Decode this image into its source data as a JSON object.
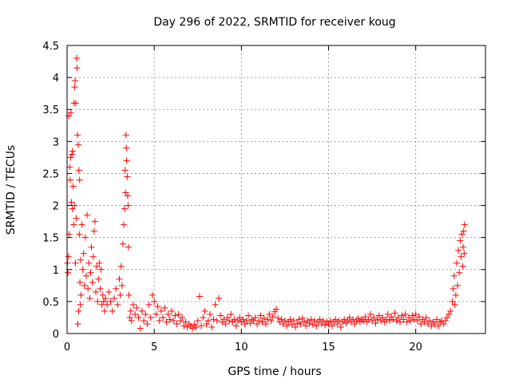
{
  "chart_data": {
    "type": "scatter",
    "title": "Day 296 of 2022, SRMTID for receiver koug",
    "xlabel": "GPS time / hours",
    "ylabel": "SRMTID / TECUs",
    "xlim": [
      0,
      24
    ],
    "ylim": [
      0,
      4.5
    ],
    "x_ticks": [
      0,
      5,
      10,
      15,
      20
    ],
    "x_tick_labels": [
      "0",
      "5",
      "10",
      "15",
      "20"
    ],
    "y_ticks": [
      0,
      0.5,
      1,
      1.5,
      2,
      2.5,
      3,
      3.5,
      4,
      4.5
    ],
    "y_tick_labels": [
      "0",
      "0.5",
      "1",
      "1.5",
      "2",
      "2.5",
      "3",
      "3.5",
      "4",
      "4.5"
    ],
    "grid": true,
    "marker": "plus",
    "color": "#ff0000",
    "series": [
      {
        "name": "SRMTID",
        "points": [
          [
            0.02,
            1.1
          ],
          [
            0.05,
            0.95
          ],
          [
            0.08,
            1.2
          ],
          [
            0.1,
            3.4
          ],
          [
            0.12,
            1.55
          ],
          [
            0.15,
            2.6
          ],
          [
            0.18,
            2.4
          ],
          [
            0.2,
            2.75
          ],
          [
            0.22,
            3.45
          ],
          [
            0.25,
            2.05
          ],
          [
            0.28,
            2.8
          ],
          [
            0.3,
            1.95
          ],
          [
            0.32,
            2.85
          ],
          [
            0.35,
            2.3
          ],
          [
            0.38,
            1.7
          ],
          [
            0.4,
            3.6
          ],
          [
            0.42,
            2.0
          ],
          [
            0.44,
            3.85
          ],
          [
            0.46,
            3.95
          ],
          [
            0.48,
            1.1
          ],
          [
            0.5,
            3.6
          ],
          [
            0.52,
            1.8
          ],
          [
            0.55,
            4.3
          ],
          [
            0.57,
            4.15
          ],
          [
            0.6,
            3.1
          ],
          [
            0.62,
            0.15
          ],
          [
            0.64,
            2.95
          ],
          [
            0.66,
            0.35
          ],
          [
            0.68,
            2.55
          ],
          [
            0.7,
            1.55
          ],
          [
            0.72,
            2.4
          ],
          [
            0.74,
            0.8
          ],
          [
            0.76,
            0.45
          ],
          [
            0.78,
            1.15
          ],
          [
            0.8,
            0.6
          ],
          [
            0.85,
            1.7
          ],
          [
            0.9,
            1.0
          ],
          [
            0.95,
            1.25
          ],
          [
            1.0,
            0.75
          ],
          [
            1.05,
            1.5
          ],
          [
            1.1,
            0.9
          ],
          [
            1.15,
            1.85
          ],
          [
            1.2,
            0.7
          ],
          [
            1.25,
            1.1
          ],
          [
            1.3,
            0.55
          ],
          [
            1.35,
            0.95
          ],
          [
            1.4,
            1.35
          ],
          [
            1.45,
            0.8
          ],
          [
            1.5,
            1.2
          ],
          [
            1.55,
            1.6
          ],
          [
            1.6,
            1.75
          ],
          [
            1.65,
            0.65
          ],
          [
            1.7,
            1.05
          ],
          [
            1.75,
            0.5
          ],
          [
            1.8,
            0.85
          ],
          [
            1.85,
            1.1
          ],
          [
            1.9,
            0.7
          ],
          [
            1.95,
            1.0
          ],
          [
            2.0,
            0.45
          ],
          [
            2.05,
            0.6
          ],
          [
            2.1,
            0.5
          ],
          [
            2.15,
            0.35
          ],
          [
            2.2,
            0.55
          ],
          [
            2.3,
            0.45
          ],
          [
            2.4,
            0.65
          ],
          [
            2.5,
            0.5
          ],
          [
            2.6,
            0.35
          ],
          [
            2.7,
            0.55
          ],
          [
            2.8,
            0.7
          ],
          [
            2.9,
            0.45
          ],
          [
            3.0,
            0.85
          ],
          [
            3.05,
            0.6
          ],
          [
            3.1,
            1.05
          ],
          [
            3.15,
            0.75
          ],
          [
            3.2,
            1.4
          ],
          [
            3.25,
            1.7
          ],
          [
            3.3,
            1.95
          ],
          [
            3.33,
            2.55
          ],
          [
            3.36,
            2.2
          ],
          [
            3.38,
            3.1
          ],
          [
            3.4,
            2.9
          ],
          [
            3.42,
            2.7
          ],
          [
            3.45,
            2.45
          ],
          [
            3.48,
            2.15
          ],
          [
            3.5,
            2.0
          ],
          [
            3.52,
            1.35
          ],
          [
            3.55,
            0.6
          ],
          [
            3.6,
            0.25
          ],
          [
            3.65,
            0.35
          ],
          [
            3.7,
            0.2
          ],
          [
            3.8,
            0.45
          ],
          [
            3.9,
            0.3
          ],
          [
            4.0,
            0.4
          ],
          [
            4.1,
            0.25
          ],
          [
            4.2,
            0.08
          ],
          [
            4.3,
            0.35
          ],
          [
            4.4,
            0.2
          ],
          [
            4.5,
            0.3
          ],
          [
            4.6,
            0.15
          ],
          [
            4.7,
            0.45
          ],
          [
            4.8,
            0.25
          ],
          [
            4.9,
            0.6
          ],
          [
            5.0,
            0.5
          ],
          [
            5.1,
            0.3
          ],
          [
            5.2,
            0.42
          ],
          [
            5.3,
            0.2
          ],
          [
            5.4,
            0.35
          ],
          [
            5.5,
            0.25
          ],
          [
            5.6,
            0.4
          ],
          [
            5.7,
            0.18
          ],
          [
            5.8,
            0.3
          ],
          [
            5.9,
            0.22
          ],
          [
            6.0,
            0.35
          ],
          [
            6.1,
            0.2
          ],
          [
            6.2,
            0.28
          ],
          [
            6.3,
            0.15
          ],
          [
            6.4,
            0.3
          ],
          [
            6.5,
            0.2
          ],
          [
            6.6,
            0.25
          ],
          [
            6.7,
            0.12
          ],
          [
            6.8,
            0.18
          ],
          [
            6.9,
            0.1
          ],
          [
            7.0,
            0.15
          ],
          [
            7.1,
            0.12
          ],
          [
            7.2,
            0.08
          ],
          [
            7.3,
            0.14
          ],
          [
            7.4,
            0.1
          ],
          [
            7.5,
            0.2
          ],
          [
            7.6,
            0.58
          ],
          [
            7.7,
            0.12
          ],
          [
            7.8,
            0.25
          ],
          [
            7.9,
            0.35
          ],
          [
            8.0,
            0.15
          ],
          [
            8.1,
            0.2
          ],
          [
            8.2,
            0.3
          ],
          [
            8.3,
            0.1
          ],
          [
            8.4,
            0.22
          ],
          [
            8.5,
            0.45
          ],
          [
            8.6,
            0.2
          ],
          [
            8.7,
            0.55
          ],
          [
            8.8,
            0.28
          ],
          [
            8.9,
            0.18
          ],
          [
            9.0,
            0.22
          ],
          [
            9.1,
            0.15
          ],
          [
            9.2,
            0.25
          ],
          [
            9.3,
            0.2
          ],
          [
            9.4,
            0.3
          ],
          [
            9.5,
            0.18
          ],
          [
            9.6,
            0.22
          ],
          [
            9.7,
            0.12
          ],
          [
            9.8,
            0.2
          ],
          [
            9.9,
            0.25
          ],
          [
            10.0,
            0.18
          ],
          [
            10.1,
            0.22
          ],
          [
            10.2,
            0.15
          ],
          [
            10.3,
            0.2
          ],
          [
            10.4,
            0.28
          ],
          [
            10.5,
            0.16
          ],
          [
            10.6,
            0.22
          ],
          [
            10.7,
            0.2
          ],
          [
            10.8,
            0.25
          ],
          [
            10.9,
            0.15
          ],
          [
            11.0,
            0.2
          ],
          [
            11.1,
            0.28
          ],
          [
            11.2,
            0.18
          ],
          [
            11.3,
            0.24
          ],
          [
            11.4,
            0.15
          ],
          [
            11.5,
            0.22
          ],
          [
            11.6,
            0.3
          ],
          [
            11.7,
            0.2
          ],
          [
            11.8,
            0.26
          ],
          [
            11.9,
            0.34
          ],
          [
            12.0,
            0.38
          ],
          [
            12.1,
            0.24
          ],
          [
            12.2,
            0.18
          ],
          [
            12.3,
            0.22
          ],
          [
            12.4,
            0.15
          ],
          [
            12.5,
            0.2
          ],
          [
            12.6,
            0.12
          ],
          [
            12.7,
            0.18
          ],
          [
            12.8,
            0.22
          ],
          [
            12.9,
            0.14
          ],
          [
            13.0,
            0.2
          ],
          [
            13.1,
            0.1
          ],
          [
            13.2,
            0.16
          ],
          [
            13.3,
            0.22
          ],
          [
            13.4,
            0.15
          ],
          [
            13.5,
            0.24
          ],
          [
            13.6,
            0.18
          ],
          [
            13.7,
            0.12
          ],
          [
            13.8,
            0.2
          ],
          [
            13.9,
            0.16
          ],
          [
            14.0,
            0.22
          ],
          [
            14.1,
            0.14
          ],
          [
            14.2,
            0.2
          ],
          [
            14.3,
            0.12
          ],
          [
            14.4,
            0.18
          ],
          [
            14.5,
            0.22
          ],
          [
            14.6,
            0.15
          ],
          [
            14.7,
            0.2
          ],
          [
            14.8,
            0.13
          ],
          [
            14.9,
            0.18
          ],
          [
            15.0,
            0.15
          ],
          [
            15.1,
            0.2
          ],
          [
            15.2,
            0.12
          ],
          [
            15.3,
            0.18
          ],
          [
            15.4,
            0.22
          ],
          [
            15.5,
            0.15
          ],
          [
            15.6,
            0.2
          ],
          [
            15.7,
            0.1
          ],
          [
            15.8,
            0.18
          ],
          [
            15.9,
            0.22
          ],
          [
            16.0,
            0.16
          ],
          [
            16.1,
            0.2
          ],
          [
            16.2,
            0.25
          ],
          [
            16.3,
            0.18
          ],
          [
            16.4,
            0.22
          ],
          [
            16.5,
            0.15
          ],
          [
            16.6,
            0.2
          ],
          [
            16.7,
            0.24
          ],
          [
            16.8,
            0.18
          ],
          [
            16.9,
            0.22
          ],
          [
            17.0,
            0.2
          ],
          [
            17.1,
            0.26
          ],
          [
            17.2,
            0.18
          ],
          [
            17.3,
            0.22
          ],
          [
            17.4,
            0.3
          ],
          [
            17.5,
            0.2
          ],
          [
            17.6,
            0.25
          ],
          [
            17.7,
            0.16
          ],
          [
            17.8,
            0.22
          ],
          [
            17.9,
            0.28
          ],
          [
            18.0,
            0.2
          ],
          [
            18.1,
            0.25
          ],
          [
            18.2,
            0.18
          ],
          [
            18.3,
            0.22
          ],
          [
            18.4,
            0.3
          ],
          [
            18.5,
            0.2
          ],
          [
            18.6,
            0.26
          ],
          [
            18.7,
            0.22
          ],
          [
            18.8,
            0.32
          ],
          [
            18.9,
            0.2
          ],
          [
            19.0,
            0.25
          ],
          [
            19.1,
            0.18
          ],
          [
            19.2,
            0.28
          ],
          [
            19.3,
            0.22
          ],
          [
            19.4,
            0.3
          ],
          [
            19.5,
            0.18
          ],
          [
            19.6,
            0.25
          ],
          [
            19.7,
            0.2
          ],
          [
            19.8,
            0.28
          ],
          [
            19.9,
            0.22
          ],
          [
            20.0,
            0.3
          ],
          [
            20.1,
            0.2
          ],
          [
            20.2,
            0.26
          ],
          [
            20.3,
            0.15
          ],
          [
            20.4,
            0.22
          ],
          [
            20.5,
            0.18
          ],
          [
            20.6,
            0.25
          ],
          [
            20.7,
            0.15
          ],
          [
            20.8,
            0.2
          ],
          [
            20.9,
            0.12
          ],
          [
            21.0,
            0.18
          ],
          [
            21.1,
            0.15
          ],
          [
            21.2,
            0.22
          ],
          [
            21.3,
            0.12
          ],
          [
            21.4,
            0.18
          ],
          [
            21.5,
            0.2
          ],
          [
            21.6,
            0.15
          ],
          [
            21.7,
            0.2
          ],
          [
            21.8,
            0.25
          ],
          [
            21.9,
            0.3
          ],
          [
            22.0,
            0.35
          ],
          [
            22.1,
            0.5
          ],
          [
            22.15,
            0.7
          ],
          [
            22.2,
            0.9
          ],
          [
            22.25,
            0.45
          ],
          [
            22.3,
            0.6
          ],
          [
            22.35,
            1.1
          ],
          [
            22.4,
            0.75
          ],
          [
            22.45,
            1.3
          ],
          [
            22.5,
            0.95
          ],
          [
            22.55,
            1.45
          ],
          [
            22.6,
            1.2
          ],
          [
            22.65,
            1.55
          ],
          [
            22.7,
            1.05
          ],
          [
            22.72,
            1.35
          ],
          [
            22.75,
            1.6
          ],
          [
            22.78,
            1.25
          ],
          [
            22.8,
            1.7
          ]
        ]
      }
    ]
  }
}
